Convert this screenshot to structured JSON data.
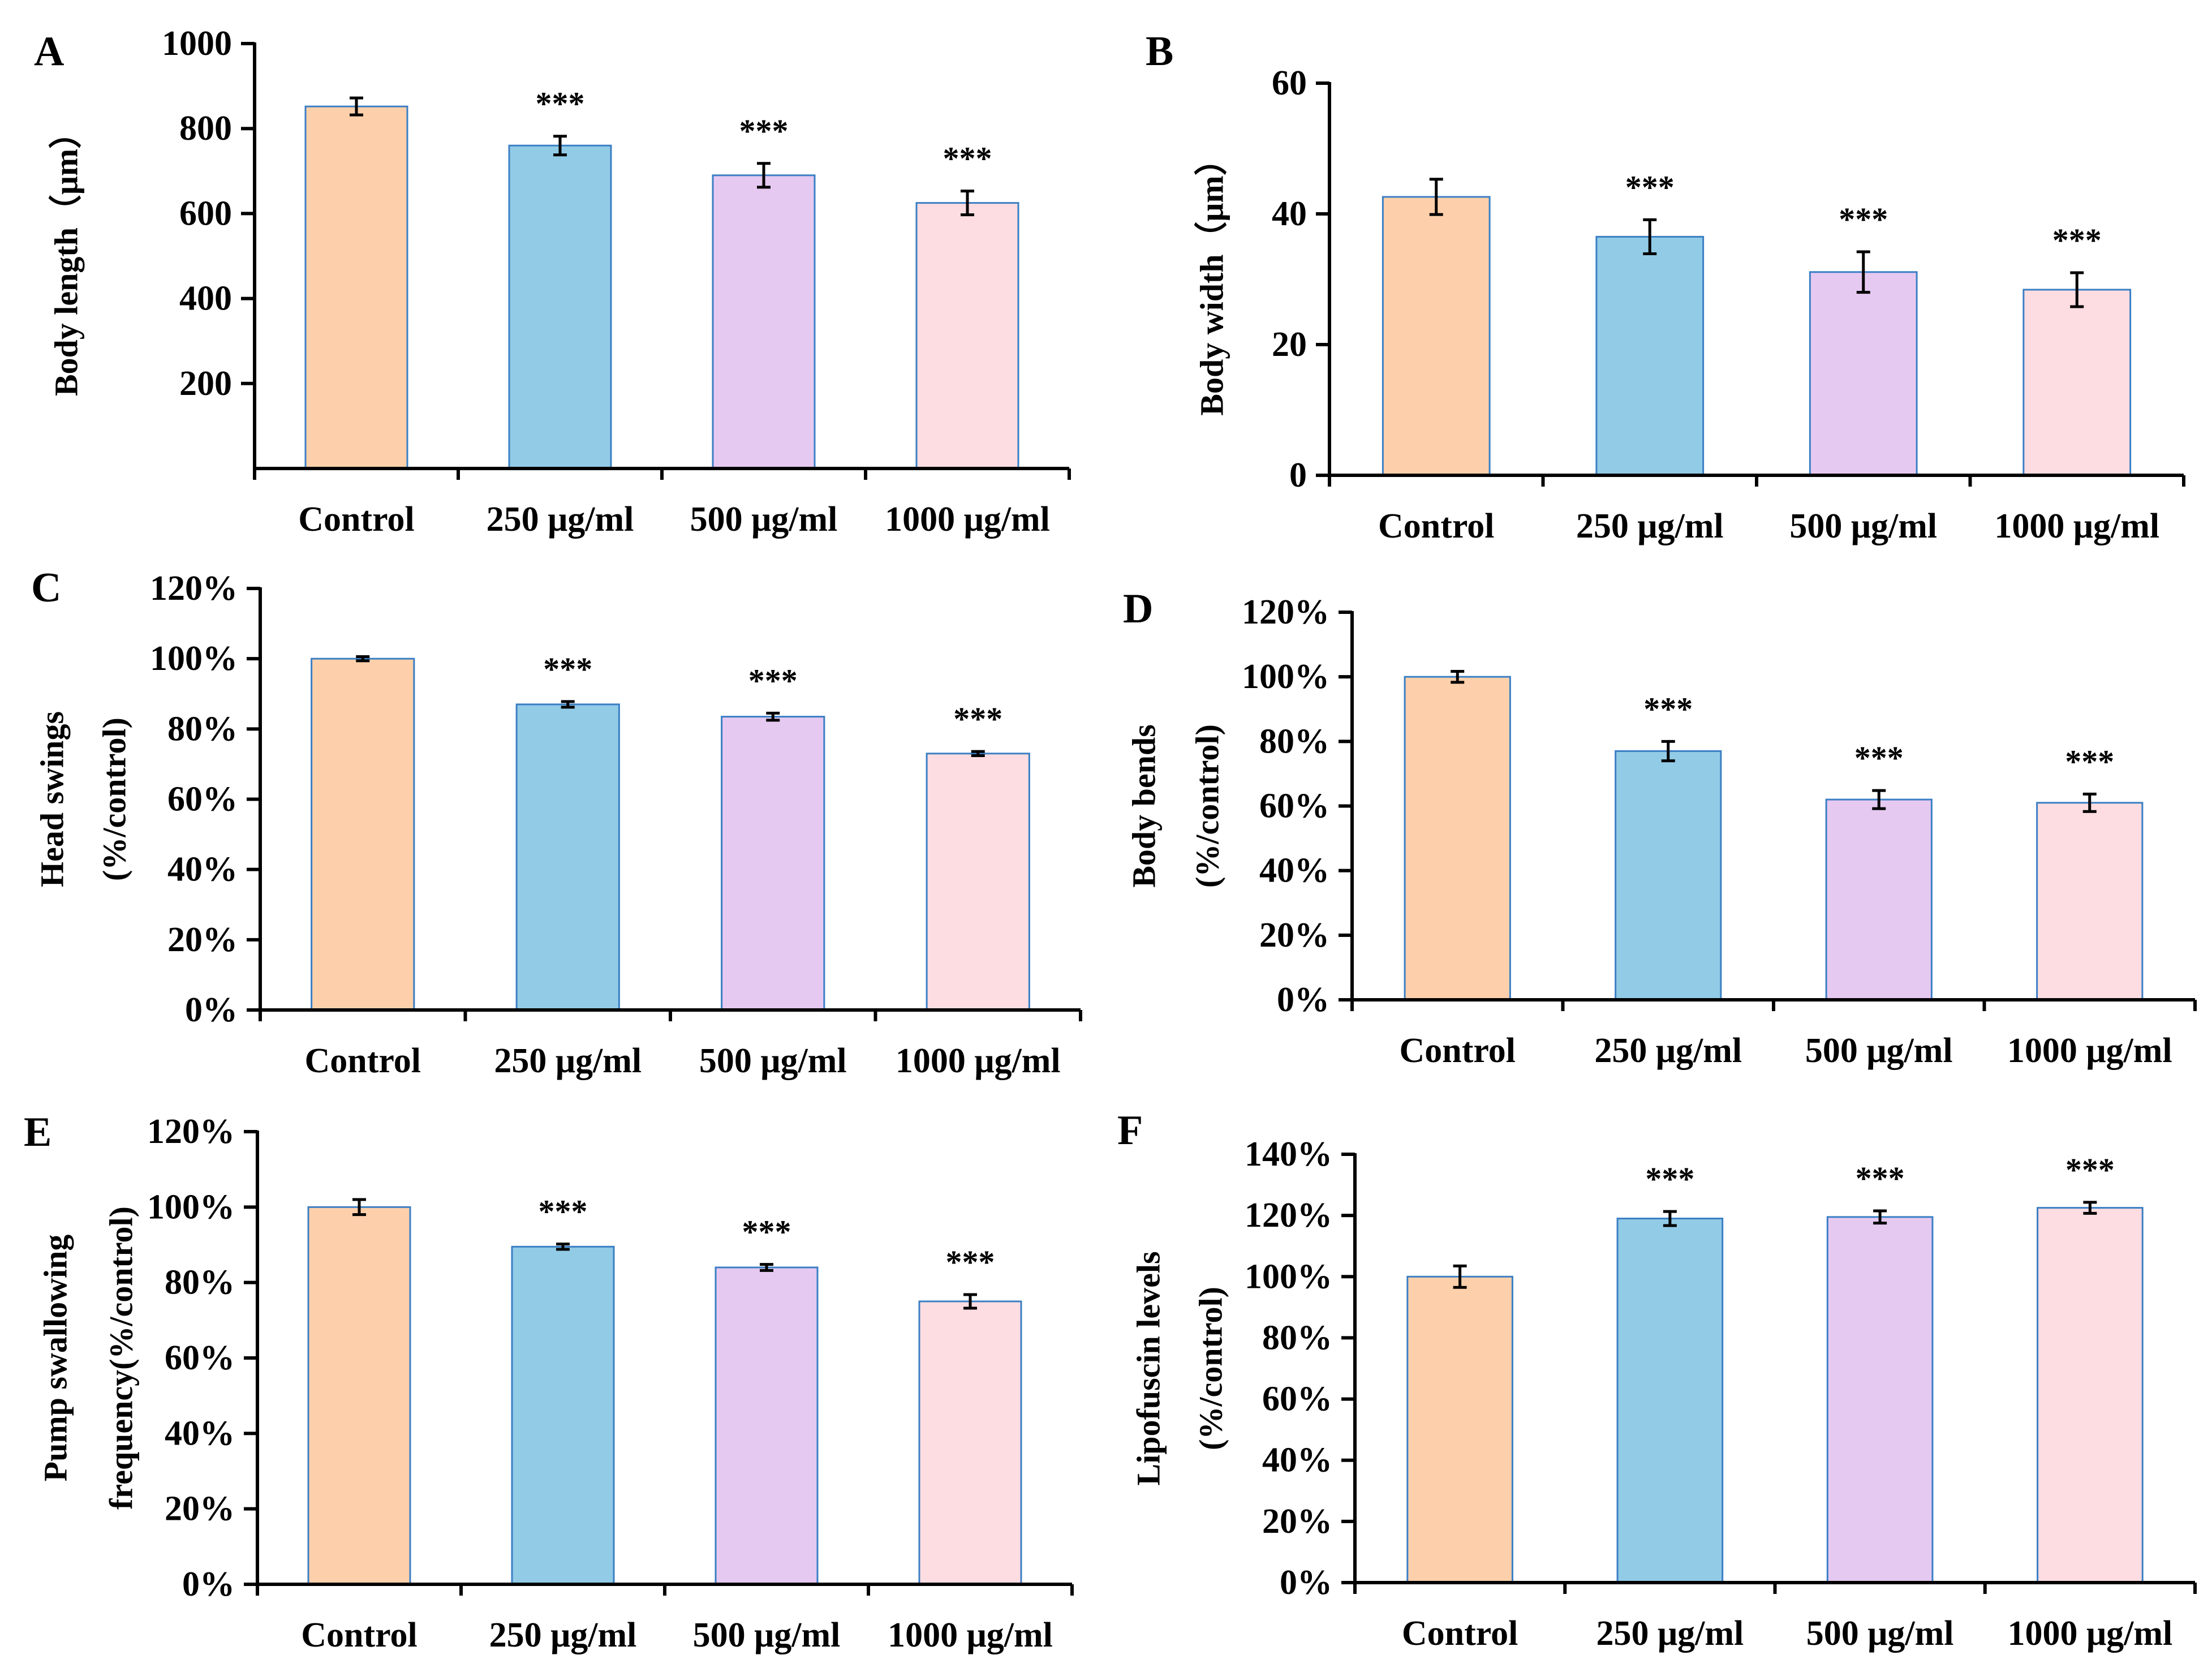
{
  "categories": [
    "Control",
    "250 μg/ml",
    "500 μg/ml",
    "1000 μg/ml"
  ],
  "colors": {
    "bar_fills": [
      "#fdd0ab",
      "#92cbe6",
      "#e6c9f1",
      "#fddde1"
    ],
    "bar_stroke": "#3b7fc4",
    "axis": "#000000"
  },
  "chart_data": [
    {
      "id": "A",
      "panel_label": "A",
      "type": "bar",
      "ylabel": "Body length（μm）",
      "ylabel2": "",
      "ylim": [
        0,
        1000
      ],
      "yticks": [
        {
          "v": 200,
          "label": "200"
        },
        {
          "v": 400,
          "label": "400"
        },
        {
          "v": 600,
          "label": "600"
        },
        {
          "v": 800,
          "label": "800"
        },
        {
          "v": 1000,
          "label": "1000"
        }
      ],
      "categories": [
        "Control",
        "250 μg/ml",
        "500 μg/ml",
        "1000 μg/ml"
      ],
      "values": [
        852,
        760,
        690,
        625
      ],
      "errors": [
        20,
        22,
        28,
        28
      ],
      "significance": [
        "",
        "***",
        "***",
        "***"
      ]
    },
    {
      "id": "B",
      "panel_label": "B",
      "type": "bar",
      "ylabel": "Body width（μm）",
      "ylabel2": "",
      "ylim": [
        0,
        60
      ],
      "yticks": [
        {
          "v": 0,
          "label": "0"
        },
        {
          "v": 20,
          "label": "20"
        },
        {
          "v": 40,
          "label": "40"
        },
        {
          "v": 60,
          "label": "60"
        }
      ],
      "categories": [
        "Control",
        "250 μg/ml",
        "500 μg/ml",
        "1000 μg/ml"
      ],
      "values": [
        42.6,
        36.5,
        31.1,
        28.4
      ],
      "errors": [
        2.7,
        2.6,
        3.1,
        2.6
      ],
      "significance": [
        "",
        "***",
        "***",
        "***"
      ]
    },
    {
      "id": "C",
      "panel_label": "C",
      "type": "bar",
      "ylabel": "Head swings",
      "ylabel2": "(%/control)",
      "ylim": [
        0,
        120
      ],
      "yticks": [
        {
          "v": 0,
          "label": "0%"
        },
        {
          "v": 20,
          "label": "20%"
        },
        {
          "v": 40,
          "label": "40%"
        },
        {
          "v": 60,
          "label": "60%"
        },
        {
          "v": 80,
          "label": "80%"
        },
        {
          "v": 100,
          "label": "100%"
        },
        {
          "v": 120,
          "label": "120%"
        }
      ],
      "categories": [
        "Control",
        "250 μg/ml",
        "500 μg/ml",
        "1000 μg/ml"
      ],
      "values": [
        100,
        87,
        83.5,
        73
      ],
      "errors": [
        0.6,
        0.8,
        1.0,
        0.6
      ],
      "significance": [
        "",
        "***",
        "***",
        "***"
      ]
    },
    {
      "id": "D",
      "panel_label": "D",
      "type": "bar",
      "ylabel": "Body bends",
      "ylabel2": "(%/control)",
      "ylim": [
        0,
        120
      ],
      "yticks": [
        {
          "v": 0,
          "label": "0%"
        },
        {
          "v": 20,
          "label": "20%"
        },
        {
          "v": 40,
          "label": "40%"
        },
        {
          "v": 60,
          "label": "60%"
        },
        {
          "v": 80,
          "label": "80%"
        },
        {
          "v": 100,
          "label": "100%"
        },
        {
          "v": 120,
          "label": "120%"
        }
      ],
      "categories": [
        "Control",
        "250 μg/ml",
        "500 μg/ml",
        "1000 μg/ml"
      ],
      "values": [
        100,
        77,
        62,
        61
      ],
      "errors": [
        1.7,
        3.0,
        2.8,
        2.7
      ],
      "significance": [
        "",
        "***",
        "***",
        "***"
      ]
    },
    {
      "id": "E",
      "panel_label": "E",
      "type": "bar",
      "ylabel": "Pump swallowing",
      "ylabel2": "frequency(%/control)",
      "ylim": [
        0,
        120
      ],
      "yticks": [
        {
          "v": 0,
          "label": "0%"
        },
        {
          "v": 20,
          "label": "20%"
        },
        {
          "v": 40,
          "label": "40%"
        },
        {
          "v": 60,
          "label": "60%"
        },
        {
          "v": 80,
          "label": "80%"
        },
        {
          "v": 100,
          "label": "100%"
        },
        {
          "v": 120,
          "label": "120%"
        }
      ],
      "categories": [
        "Control",
        "250 μg/ml",
        "500 μg/ml",
        "1000 μg/ml"
      ],
      "values": [
        100,
        89.5,
        84,
        75
      ],
      "errors": [
        2.0,
        0.7,
        0.8,
        1.8
      ],
      "significance": [
        "",
        "***",
        "***",
        "***"
      ]
    },
    {
      "id": "F",
      "panel_label": "F",
      "type": "bar",
      "ylabel": "Lipofuscin levels",
      "ylabel2": "(%/control)",
      "ylim": [
        0,
        140
      ],
      "yticks": [
        {
          "v": 0,
          "label": "0%"
        },
        {
          "v": 20,
          "label": "20%"
        },
        {
          "v": 40,
          "label": "40%"
        },
        {
          "v": 60,
          "label": "60%"
        },
        {
          "v": 80,
          "label": "80%"
        },
        {
          "v": 100,
          "label": "100%"
        },
        {
          "v": 120,
          "label": "120%"
        },
        {
          "v": 140,
          "label": "140%"
        }
      ],
      "categories": [
        "Control",
        "250 μg/ml",
        "500 μg/ml",
        "1000 μg/ml"
      ],
      "values": [
        100,
        119,
        119.5,
        122.5
      ],
      "errors": [
        3.5,
        2.3,
        2.0,
        1.8
      ],
      "significance": [
        "",
        "***",
        "***",
        "***"
      ]
    }
  ]
}
